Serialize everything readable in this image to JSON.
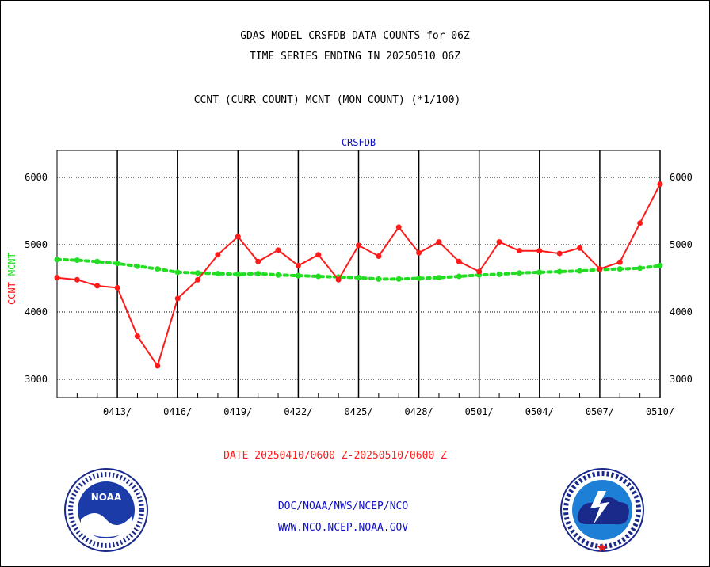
{
  "header": {
    "title_line1": "GDAS MODEL CRSFDB DATA COUNTS for 06Z",
    "title_line2": "TIME SERIES ENDING IN 20250510 06Z",
    "subtitle": "CCNT (CURR COUNT) MCNT (MON COUNT) (*1/100)"
  },
  "chart_data": {
    "type": "line",
    "title": "CRSFDB",
    "ylabel_series": [
      "CCNT",
      "MCNT"
    ],
    "xlabel": "DATE 20250410/0600 Z-20250510/0600 Z",
    "x_tick_labels": [
      "0413/",
      "0416/",
      "0419/",
      "0422/",
      "0425/",
      "0428/",
      "0501/",
      "0504/",
      "0507/",
      "0510/"
    ],
    "y_ticks": [
      3000,
      4000,
      5000,
      6000
    ],
    "ylim": [
      2730,
      6400
    ],
    "x_days": [
      "0410",
      "0411",
      "0412",
      "0413",
      "0414",
      "0415",
      "0416",
      "0417",
      "0418",
      "0419",
      "0420",
      "0421",
      "0422",
      "0423",
      "0424",
      "0425",
      "0426",
      "0427",
      "0428",
      "0429",
      "0430",
      "0501",
      "0502",
      "0503",
      "0504",
      "0505",
      "0506",
      "0507",
      "0508",
      "0509",
      "0510"
    ],
    "series": [
      {
        "name": "CCNT",
        "color": "#ff1a1a",
        "style": "solid",
        "values": [
          4510,
          4480,
          4390,
          4360,
          3640,
          3200,
          4200,
          4480,
          4850,
          5120,
          4750,
          4920,
          4690,
          4850,
          4480,
          4990,
          4830,
          5260,
          4880,
          5040,
          4750,
          4600,
          5040,
          4910,
          4910,
          4870,
          4950,
          4640,
          4740,
          5320,
          5900
        ]
      },
      {
        "name": "MCNT",
        "color": "#22dd22",
        "style": "dashed",
        "values": [
          4780,
          4770,
          4750,
          4720,
          4680,
          4640,
          4590,
          4580,
          4570,
          4560,
          4570,
          4550,
          4540,
          4530,
          4520,
          4510,
          4490,
          4490,
          4500,
          4510,
          4530,
          4550,
          4560,
          4580,
          4590,
          4600,
          4610,
          4630,
          4640,
          4650,
          4690
        ]
      }
    ],
    "grid": true
  },
  "footer": {
    "org_link": "DOC/NOAA/NWS/NCEP/NCO",
    "web_link": "WWW.NCO.NCEP.NOAA.GOV",
    "logo_left_text": "NOAA",
    "logo_left_ring": "NATIONAL OCEANIC AND ATMOSPHERIC ADMINISTRATION · U.S. DEPARTMENT OF COMMERCE",
    "logo_right_ring": "NATIONAL WEATHER SERVICE"
  },
  "colors": {
    "ccnt": "#ff1a1a",
    "mcnt": "#22dd22",
    "title_blue": "#1010c8",
    "date_red": "#ff1a1a"
  }
}
